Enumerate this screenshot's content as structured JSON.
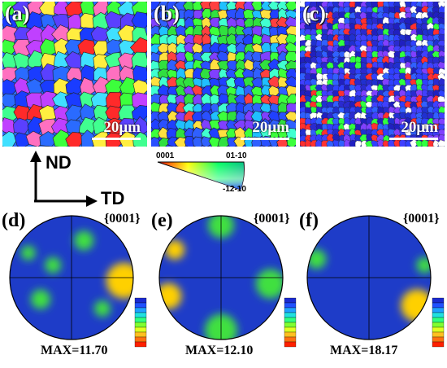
{
  "ebsd_maps": [
    {
      "label": "(a)",
      "scale": "20μm"
    },
    {
      "label": "(b)",
      "scale": "20μm"
    },
    {
      "label": "(c)",
      "scale": "20μm"
    }
  ],
  "axes": {
    "vertical": "ND",
    "horizontal": "TD"
  },
  "ipf_key": {
    "corner_left": "0001",
    "corner_right": "01-10",
    "corner_bottom": "-12-10"
  },
  "pole_figures": [
    {
      "label": "(d)",
      "plane": "{0001}",
      "max": "MAX=11.70"
    },
    {
      "label": "(e)",
      "plane": "{0001}",
      "max": "MAX=12.10"
    },
    {
      "label": "(f)",
      "plane": "{0001}",
      "max": "MAX=18.17"
    }
  ],
  "colors": {
    "ipf_red": "#ff0000",
    "ipf_green": "#00ff00",
    "ipf_blue": "#0000ff",
    "pf_background": "#1e3cc8",
    "pf_hot": "#ff2000"
  }
}
